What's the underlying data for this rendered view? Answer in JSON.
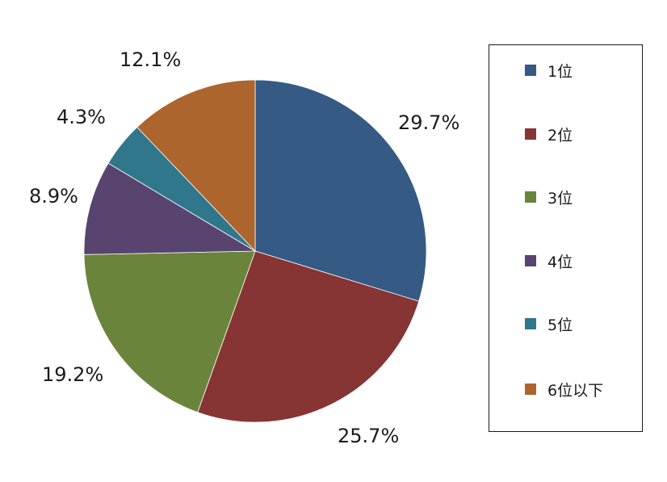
{
  "chart_data": {
    "type": "pie",
    "categories": [
      "1位",
      "2位",
      "3位",
      "4位",
      "5位",
      "6位以下"
    ],
    "values": [
      29.7,
      25.7,
      19.2,
      8.9,
      4.3,
      12.1
    ],
    "value_labels": [
      "29.7%",
      "25.7%",
      "19.2%",
      "8.9%",
      "4.3%",
      "12.1%"
    ],
    "colors": [
      "#355a84",
      "#863434",
      "#6b843c",
      "#58446f",
      "#31778b",
      "#ac652c"
    ],
    "start": "12 o'clock",
    "direction": "clockwise",
    "legend": "right"
  }
}
